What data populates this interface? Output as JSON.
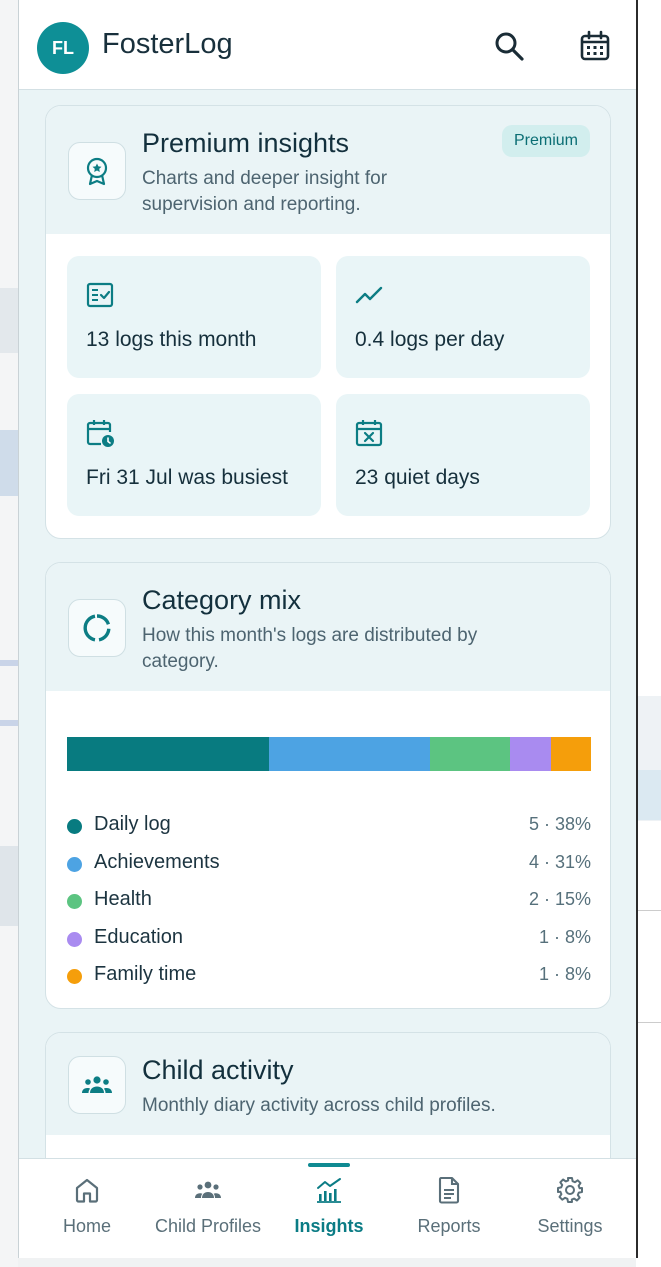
{
  "app": {
    "initials": "FL",
    "title": "FosterLog"
  },
  "premium": {
    "title": "Premium insights",
    "subtitle": "Charts and deeper insight for supervision and reporting.",
    "badge": "Premium",
    "stats": [
      {
        "icon": "checklist-icon",
        "label": "13 logs this month"
      },
      {
        "icon": "trend-line-icon",
        "label": "0.4 logs per day"
      },
      {
        "icon": "calendar-clock-icon",
        "label": "Fri 31 Jul was busiest"
      },
      {
        "icon": "calendar-x-icon",
        "label": "23 quiet days"
      }
    ]
  },
  "category_mix": {
    "title": "Category mix",
    "subtitle": "How this month's logs are distributed by category.",
    "items": [
      {
        "name": "Daily log",
        "value": "5 · 38%",
        "count": 5,
        "color": "#087b80"
      },
      {
        "name": "Achievements",
        "value": "4 · 31%",
        "count": 4,
        "color": "#4da3e3"
      },
      {
        "name": "Health",
        "value": "2 · 15%",
        "count": 2,
        "color": "#5cc481"
      },
      {
        "name": "Education",
        "value": "1 · 8%",
        "count": 1,
        "color": "#a98bf0"
      },
      {
        "name": "Family time",
        "value": "1 · 8%",
        "count": 1,
        "color": "#f59e0b"
      }
    ]
  },
  "child_activity": {
    "title": "Child activity",
    "subtitle": "Monthly diary activity across child profiles."
  },
  "nav": [
    {
      "label": "Home",
      "icon": "home-icon",
      "active": false
    },
    {
      "label": "Child Profiles",
      "icon": "people-icon",
      "active": false
    },
    {
      "label": "Insights",
      "icon": "chart-icon",
      "active": true
    },
    {
      "label": "Reports",
      "icon": "document-icon",
      "active": false
    },
    {
      "label": "Settings",
      "icon": "gear-icon",
      "active": false
    }
  ],
  "colors": {
    "accent": "#0e8f96",
    "card_head": "#eaf4f6",
    "stat_bg": "#e9f5f7"
  }
}
